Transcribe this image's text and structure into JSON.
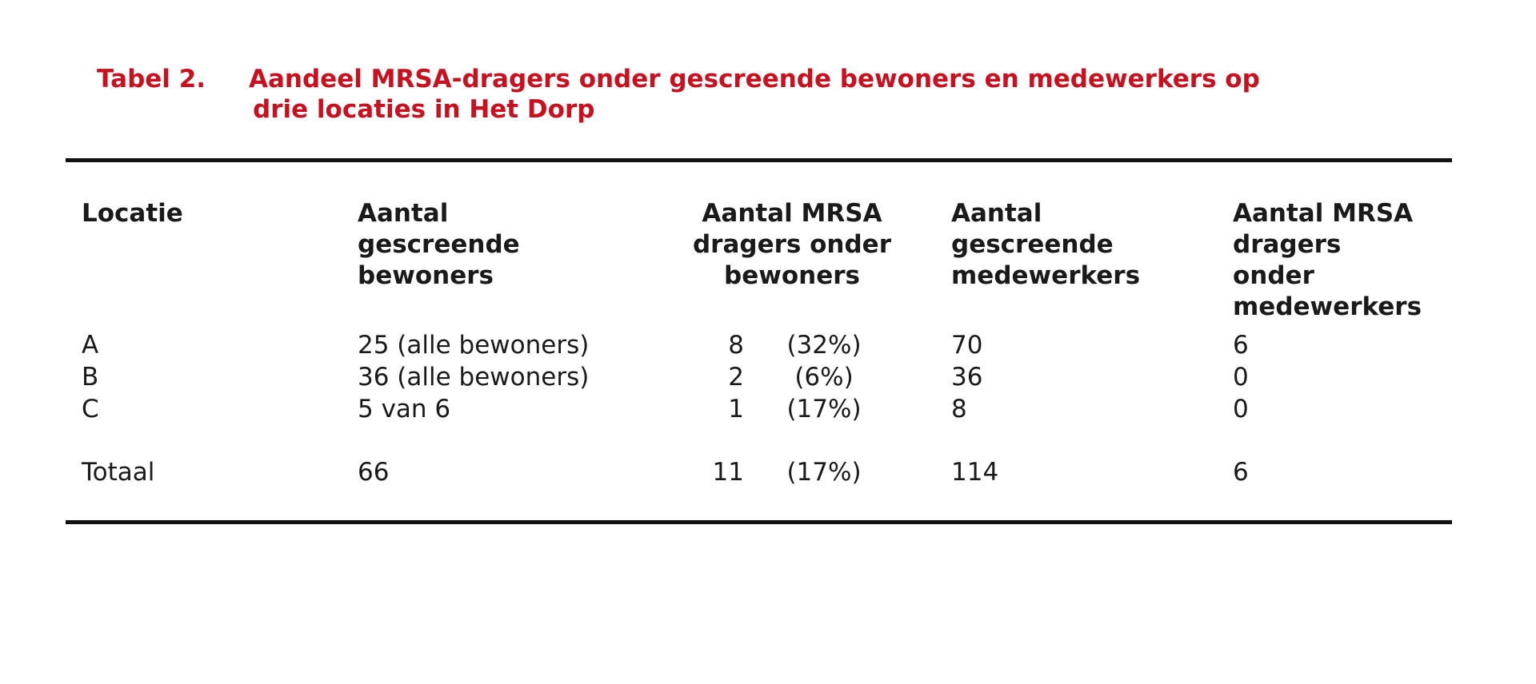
{
  "caption": {
    "label": "Tabel 2.",
    "title_line1": "Aandeel MRSA-dragers onder gescreende bewoners en medewerkers op",
    "title_line2": "drie locaties in Het Dorp"
  },
  "table": {
    "headers": [
      [
        "Locatie"
      ],
      [
        "Aantal",
        "gescreende",
        "bewoners"
      ],
      [
        "Aantal MRSA",
        "dragers onder",
        "bewoners"
      ],
      [
        "Aantal",
        "gescreende",
        "medewerkers"
      ],
      [
        "Aantal MRSA",
        "dragers",
        "onder",
        "medewerkers"
      ]
    ],
    "rows": [
      {
        "locatie": "A",
        "bewoners": "25 (alle bewoners)",
        "mrsa_n": "8",
        "mrsa_pct": "(32%)",
        "medewerkers": "70",
        "mrsa_medewerkers": "6"
      },
      {
        "locatie": "B",
        "bewoners": "36 (alle bewoners)",
        "mrsa_n": "2",
        "mrsa_pct": "(6%)",
        "medewerkers": "36",
        "mrsa_medewerkers": "0"
      },
      {
        "locatie": "C",
        "bewoners": "5 van 6",
        "mrsa_n": "1",
        "mrsa_pct": "(17%)",
        "medewerkers": "8",
        "mrsa_medewerkers": "0"
      }
    ],
    "total": {
      "locatie": "Totaal",
      "bewoners": "66",
      "mrsa_n": "11",
      "mrsa_pct": "(17%)",
      "medewerkers": "114",
      "mrsa_medewerkers": "6"
    }
  }
}
